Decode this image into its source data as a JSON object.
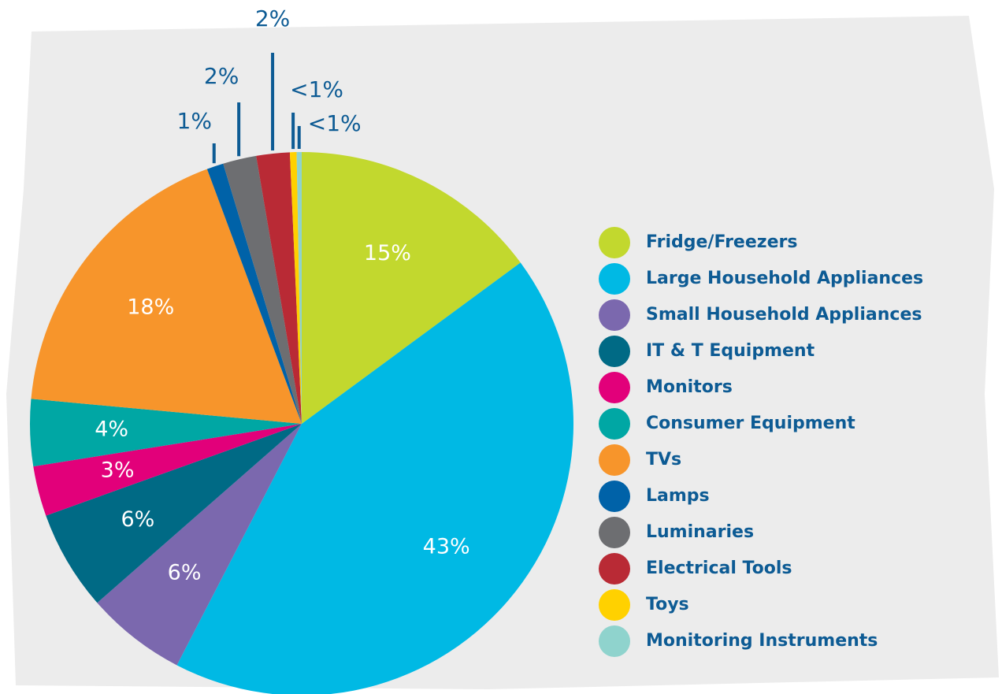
{
  "chart_data": {
    "type": "pie",
    "categories": [
      "Fridge/Freezers",
      "Large Household Appliances",
      "Small Household Appliances",
      "IT & T Equipment",
      "Monitors",
      "Consumer Equipment",
      "TVs",
      "Lamps",
      "Luminaries",
      "Electrical Tools",
      "Toys",
      "Monitoring Instruments"
    ],
    "values": [
      15,
      43,
      6,
      6,
      3,
      4,
      18,
      1,
      2,
      2,
      0.4,
      0.3
    ],
    "value_labels": [
      "15%",
      "43%",
      "6%",
      "6%",
      "3%",
      "4%",
      "18%",
      "1%",
      "2%",
      "2%",
      "<1%",
      "<1%"
    ],
    "colors": [
      "#c2d82e",
      "#00b9e4",
      "#7b68ae",
      "#006a85",
      "#e2007a",
      "#00a7a4",
      "#f7952b",
      "#0062a8",
      "#6d6e71",
      "#b92a35",
      "#ffd100",
      "#8fd3cd"
    ],
    "legend": "right"
  }
}
